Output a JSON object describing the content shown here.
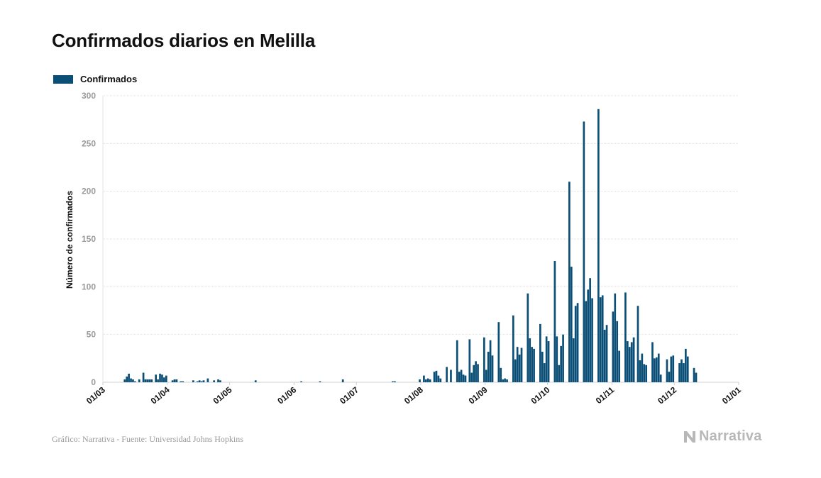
{
  "title": "Confirmados diarios en Melilla",
  "source": "Gráfico: Narrativa - Fuente: Universidad Johns Hopkins",
  "brand": {
    "name": "Narrativa",
    "icon": "narrativa-logo-icon"
  },
  "colors": {
    "bar": "#0b4f77",
    "grid": "#e3e3e3",
    "axis_text": "#9a9a9a",
    "brand": "#b8b8b8"
  },
  "chart_data": {
    "type": "bar",
    "title": "Confirmados diarios en Melilla",
    "ylabel": "Número de confirmados",
    "xlabel": "",
    "series": [
      {
        "name": "Confirmados"
      }
    ],
    "x_ticks": [
      "01/03",
      "01/04",
      "01/05",
      "01/06",
      "01/07",
      "01/08",
      "01/09",
      "01/10",
      "01/11",
      "01/12",
      "01/01"
    ],
    "y_ticks": [
      0,
      50,
      100,
      150,
      200,
      250,
      300
    ],
    "ylim": [
      0,
      300
    ],
    "xlim": [
      "2020-03-01",
      "2021-01-01"
    ],
    "grid": true,
    "legend": "top-left",
    "points": [
      [
        "2020-03-11",
        3
      ],
      [
        "2020-03-12",
        6
      ],
      [
        "2020-03-13",
        9
      ],
      [
        "2020-03-14",
        4
      ],
      [
        "2020-03-15",
        3
      ],
      [
        "2020-03-16",
        1
      ],
      [
        "2020-03-18",
        3
      ],
      [
        "2020-03-20",
        10
      ],
      [
        "2020-03-21",
        3
      ],
      [
        "2020-03-22",
        3
      ],
      [
        "2020-03-23",
        3
      ],
      [
        "2020-03-24",
        3
      ],
      [
        "2020-03-26",
        8
      ],
      [
        "2020-03-27",
        3
      ],
      [
        "2020-03-28",
        9
      ],
      [
        "2020-03-29",
        8
      ],
      [
        "2020-03-30",
        5
      ],
      [
        "2020-03-31",
        7
      ],
      [
        "2020-04-03",
        2
      ],
      [
        "2020-04-04",
        3
      ],
      [
        "2020-04-05",
        3
      ],
      [
        "2020-04-07",
        1
      ],
      [
        "2020-04-08",
        1
      ],
      [
        "2020-04-13",
        2
      ],
      [
        "2020-04-15",
        1
      ],
      [
        "2020-04-16",
        2
      ],
      [
        "2020-04-17",
        1
      ],
      [
        "2020-04-18",
        2
      ],
      [
        "2020-04-20",
        4
      ],
      [
        "2020-04-23",
        2
      ],
      [
        "2020-04-25",
        3
      ],
      [
        "2020-04-26",
        2
      ],
      [
        "2020-05-13",
        2
      ],
      [
        "2020-06-04",
        1
      ],
      [
        "2020-06-13",
        1
      ],
      [
        "2020-06-24",
        3
      ],
      [
        "2020-07-18",
        1
      ],
      [
        "2020-07-19",
        1
      ],
      [
        "2020-07-31",
        3
      ],
      [
        "2020-08-02",
        7
      ],
      [
        "2020-08-03",
        3
      ],
      [
        "2020-08-04",
        4
      ],
      [
        "2020-08-05",
        3
      ],
      [
        "2020-08-07",
        11
      ],
      [
        "2020-08-08",
        12
      ],
      [
        "2020-08-09",
        7
      ],
      [
        "2020-08-10",
        4
      ],
      [
        "2020-08-13",
        16
      ],
      [
        "2020-08-15",
        13
      ],
      [
        "2020-08-18",
        44
      ],
      [
        "2020-08-19",
        11
      ],
      [
        "2020-08-20",
        13
      ],
      [
        "2020-08-21",
        8
      ],
      [
        "2020-08-22",
        7
      ],
      [
        "2020-08-24",
        45
      ],
      [
        "2020-08-25",
        10
      ],
      [
        "2020-08-26",
        18
      ],
      [
        "2020-08-27",
        22
      ],
      [
        "2020-08-28",
        19
      ],
      [
        "2020-08-31",
        47
      ],
      [
        "2020-09-01",
        13
      ],
      [
        "2020-09-02",
        32
      ],
      [
        "2020-09-03",
        44
      ],
      [
        "2020-09-04",
        28
      ],
      [
        "2020-09-07",
        63
      ],
      [
        "2020-09-08",
        15
      ],
      [
        "2020-09-09",
        3
      ],
      [
        "2020-09-10",
        4
      ],
      [
        "2020-09-11",
        3
      ],
      [
        "2020-09-14",
        70
      ],
      [
        "2020-09-15",
        24
      ],
      [
        "2020-09-16",
        37
      ],
      [
        "2020-09-17",
        29
      ],
      [
        "2020-09-18",
        36
      ],
      [
        "2020-09-21",
        93
      ],
      [
        "2020-09-22",
        46
      ],
      [
        "2020-09-23",
        37
      ],
      [
        "2020-09-24",
        35
      ],
      [
        "2020-09-27",
        61
      ],
      [
        "2020-09-28",
        32
      ],
      [
        "2020-09-29",
        20
      ],
      [
        "2020-09-30",
        48
      ],
      [
        "2020-10-01",
        43
      ],
      [
        "2020-10-04",
        127
      ],
      [
        "2020-10-05",
        48
      ],
      [
        "2020-10-06",
        18
      ],
      [
        "2020-10-07",
        38
      ],
      [
        "2020-10-08",
        50
      ],
      [
        "2020-10-11",
        210
      ],
      [
        "2020-10-12",
        121
      ],
      [
        "2020-10-13",
        46
      ],
      [
        "2020-10-14",
        80
      ],
      [
        "2020-10-15",
        83
      ],
      [
        "2020-10-18",
        273
      ],
      [
        "2020-10-19",
        85
      ],
      [
        "2020-10-20",
        97
      ],
      [
        "2020-10-21",
        109
      ],
      [
        "2020-10-22",
        88
      ],
      [
        "2020-10-25",
        286
      ],
      [
        "2020-10-26",
        89
      ],
      [
        "2020-10-27",
        91
      ],
      [
        "2020-10-28",
        55
      ],
      [
        "2020-10-29",
        60
      ],
      [
        "2020-11-01",
        74
      ],
      [
        "2020-11-02",
        93
      ],
      [
        "2020-11-03",
        64
      ],
      [
        "2020-11-04",
        33
      ],
      [
        "2020-11-07",
        94
      ],
      [
        "2020-11-08",
        43
      ],
      [
        "2020-11-09",
        37
      ],
      [
        "2020-11-10",
        42
      ],
      [
        "2020-11-11",
        47
      ],
      [
        "2020-11-13",
        80
      ],
      [
        "2020-11-14",
        23
      ],
      [
        "2020-11-15",
        30
      ],
      [
        "2020-11-16",
        19
      ],
      [
        "2020-11-17",
        18
      ],
      [
        "2020-11-20",
        42
      ],
      [
        "2020-11-21",
        25
      ],
      [
        "2020-11-22",
        26
      ],
      [
        "2020-11-23",
        30
      ],
      [
        "2020-11-24",
        8
      ],
      [
        "2020-11-27",
        24
      ],
      [
        "2020-11-28",
        11
      ],
      [
        "2020-11-29",
        27
      ],
      [
        "2020-11-30",
        28
      ],
      [
        "2020-12-03",
        20
      ],
      [
        "2020-12-04",
        24
      ],
      [
        "2020-12-05",
        20
      ],
      [
        "2020-12-06",
        35
      ],
      [
        "2020-12-07",
        27
      ],
      [
        "2020-12-10",
        15
      ],
      [
        "2020-12-11",
        10
      ]
    ]
  }
}
